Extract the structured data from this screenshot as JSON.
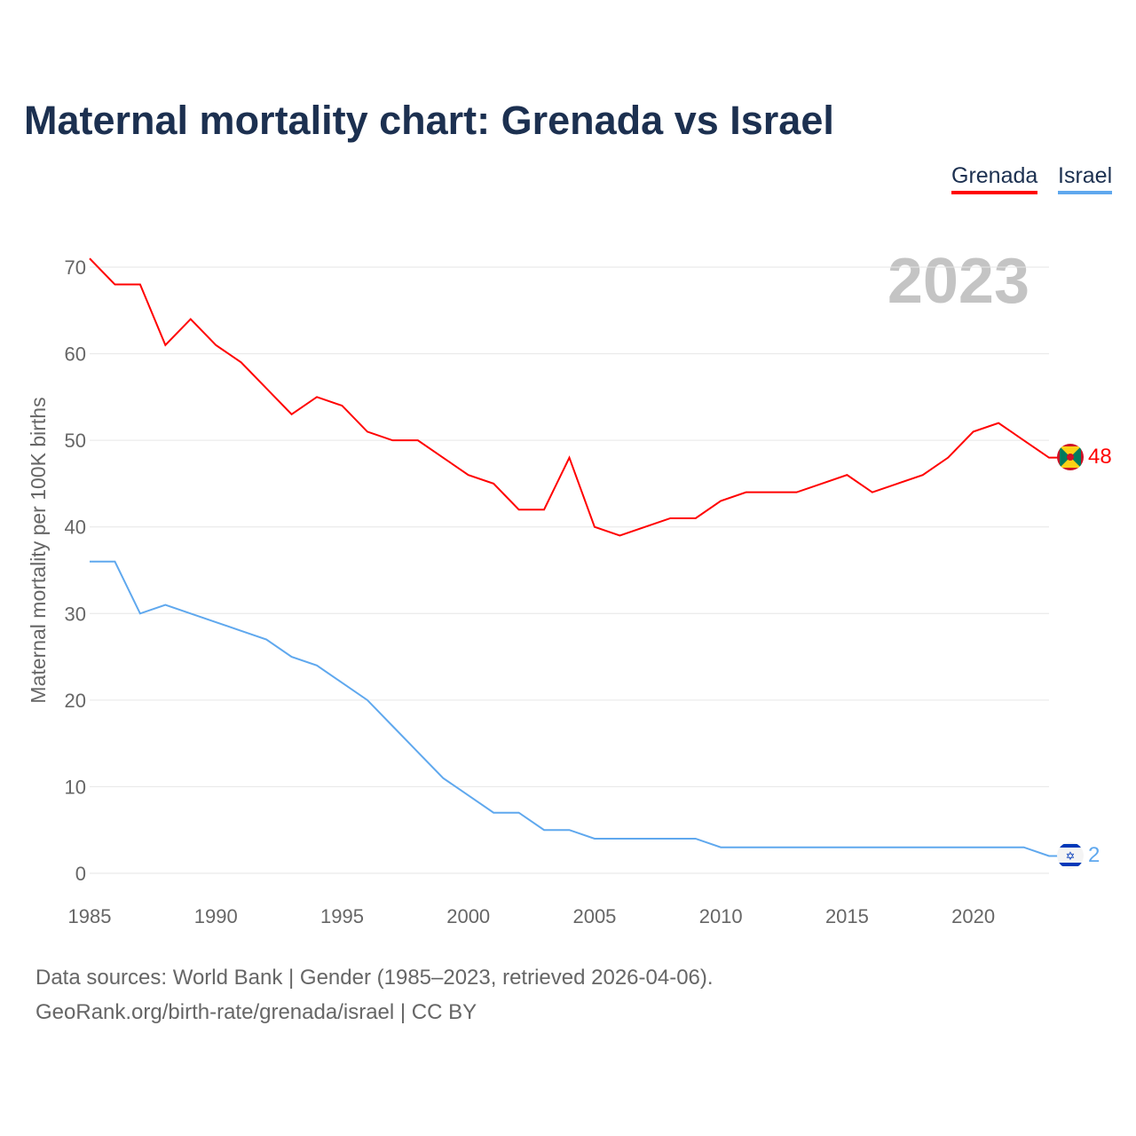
{
  "chart_data": {
    "type": "line",
    "title": "Maternal mortality chart: Grenada vs Israel",
    "ylabel": "Maternal mortality per 100K births",
    "xlabel": "",
    "year_label": "2023",
    "xlim": [
      1985,
      2023
    ],
    "ylim": [
      0,
      70
    ],
    "x_ticks": [
      1985,
      1990,
      1995,
      2000,
      2005,
      2010,
      2015,
      2020
    ],
    "y_ticks": [
      0,
      10,
      20,
      30,
      40,
      50,
      60,
      70
    ],
    "grid": true,
    "legend_position": "top-right",
    "x": [
      1985,
      1986,
      1987,
      1988,
      1989,
      1990,
      1991,
      1992,
      1993,
      1994,
      1995,
      1996,
      1997,
      1998,
      1999,
      2000,
      2001,
      2002,
      2003,
      2004,
      2005,
      2006,
      2007,
      2008,
      2009,
      2010,
      2011,
      2012,
      2013,
      2014,
      2015,
      2016,
      2017,
      2018,
      2019,
      2020,
      2021,
      2022,
      2023
    ],
    "series": [
      {
        "name": "Grenada",
        "color": "#ff0000",
        "end_label": "48",
        "values": [
          71,
          68,
          68,
          61,
          64,
          61,
          59,
          56,
          53,
          55,
          54,
          51,
          50,
          50,
          48,
          46,
          45,
          42,
          42,
          48,
          40,
          39,
          40,
          41,
          41,
          43,
          44,
          44,
          44,
          45,
          46,
          44,
          45,
          46,
          48,
          51,
          52,
          50,
          48
        ]
      },
      {
        "name": "Israel",
        "color": "#5fa8ee",
        "end_label": "2",
        "values": [
          36,
          36,
          30,
          31,
          30,
          29,
          28,
          27,
          25,
          24,
          22,
          20,
          17,
          14,
          11,
          9,
          7,
          7,
          5,
          5,
          4,
          4,
          4,
          4,
          4,
          3,
          3,
          3,
          3,
          3,
          3,
          3,
          3,
          3,
          3,
          3,
          3,
          3,
          2
        ]
      }
    ]
  },
  "footer": {
    "sources": "Data sources: World Bank | Gender (1985–2023, retrieved 2026-04-06).",
    "link": "GeoRank.org/birth-rate/grenada/israel | CC BY"
  }
}
